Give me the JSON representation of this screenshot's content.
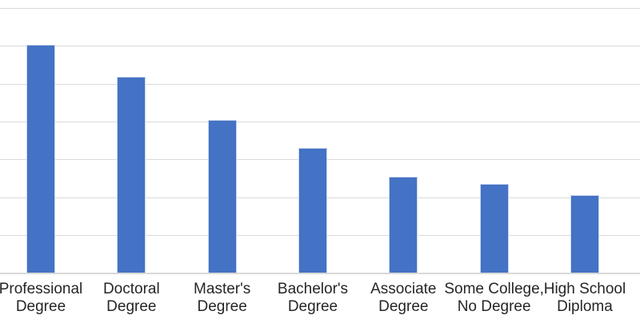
{
  "chart_data": {
    "type": "bar",
    "title": "",
    "xlabel": "",
    "ylabel": "",
    "categories": [
      "Professional Degree",
      "Doctoral Degree",
      "Master's Degree",
      "Bachelor's Degree",
      "Associate Degree",
      "Some College, No Degree",
      "High School Diploma"
    ],
    "label_lines": [
      [
        "Professional",
        "Degree"
      ],
      [
        "Doctoral",
        "Degree"
      ],
      [
        "Master's",
        "Degree"
      ],
      [
        "Bachelor's",
        "Degree"
      ],
      [
        "Associate",
        "Degree"
      ],
      [
        "Some College,",
        "No Degree"
      ],
      [
        "High School",
        "Diploma"
      ]
    ],
    "values": [
      6.02,
      5.17,
      4.03,
      3.3,
      2.54,
      2.35,
      2.04
    ],
    "value_units": "gridline-intervals (y-axis tick labels not visible in image; values estimated from unlabeled gridlines)",
    "ylim": [
      0,
      7.2
    ],
    "gridlines": {
      "visible": true,
      "count": 8,
      "interval": 1,
      "orientation": "horizontal"
    },
    "legend": "none",
    "y_tick_labels_visible": false,
    "colors": {
      "bar_fill": "#4472C4",
      "bar_border": "#C9D6EE",
      "gridline": "#DBDBDB",
      "axis_line": "#D9D9D9",
      "label_text": "#262626",
      "background": "#FFFFFF"
    }
  }
}
